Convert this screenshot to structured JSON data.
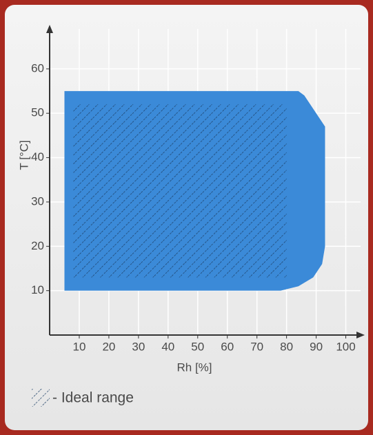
{
  "chart_data": {
    "type": "area",
    "x_label": "Rh [%]",
    "y_label": "T [°C]",
    "xlim": [
      0,
      105
    ],
    "ylim": [
      0,
      69
    ],
    "xticks": [
      10,
      20,
      30,
      40,
      50,
      60,
      70,
      80,
      90,
      100
    ],
    "yticks": [
      10,
      20,
      30,
      40,
      50,
      60
    ],
    "grid": true,
    "series": [
      {
        "color": "#3b8ad8",
        "x": [
          5,
          5,
          84,
          86,
          93,
          93,
          92,
          89,
          84,
          78
        ],
        "values": [
          10,
          55,
          55,
          54,
          47,
          20,
          16,
          13,
          11,
          10
        ]
      },
      {
        "name": "- Ideal range",
        "color": "#1d3f66",
        "pattern": "hatch",
        "x": [
          8,
          80,
          80,
          8
        ],
        "values": [
          13,
          13,
          52,
          52
        ]
      }
    ]
  }
}
